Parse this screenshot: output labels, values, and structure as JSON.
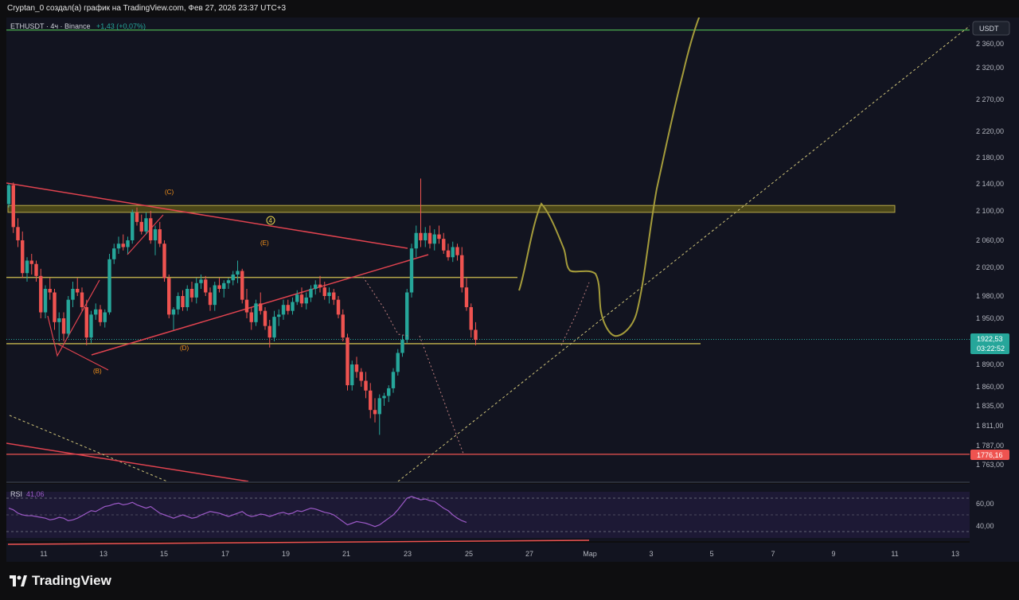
{
  "header": {
    "caption": "Cryptan_0 создал(а) график на TradingView.com, Фев 27, 2026 23:37 UTC+3"
  },
  "chart": {
    "symbol": "ETHUSDT · 4ч · Binance",
    "change": "+1,43 (+0,07%)",
    "currency_button": "USDT",
    "last_price": "1922,53",
    "countdown": "03:22:52",
    "level_label": "1776,16"
  },
  "rsi": {
    "label": "RSI",
    "value": "41,06",
    "ticks": [
      "60,00",
      "40,00"
    ]
  },
  "footer": {
    "brand": "TradingView"
  },
  "colors": {
    "background": "#121420",
    "up_candle": "#26a69a",
    "down_candle": "#ef5350",
    "zone": "#b7a94a",
    "trendline": "#e0434f",
    "hand_drawn": "#a59c3b",
    "rsi_line": "#9b59c6",
    "top_line": "#4caf50"
  },
  "chart_data": {
    "type": "candlestick",
    "symbol": "ETHUSDT",
    "timeframe": "4ч",
    "exchange": "Binance",
    "last_price": 1922.53,
    "y_ticks": [
      2360,
      2320,
      2270,
      2220,
      2180,
      2140,
      2100,
      2060,
      2020,
      1980,
      1950,
      1890,
      1860,
      1835,
      1811,
      1787,
      1763
    ],
    "y_tick_labels": [
      "2 360,00",
      "2 320,00",
      "2 270,00",
      "2 220,00",
      "2 180,00",
      "2 140,00",
      "2 100,00",
      "2 060,00",
      "2 020,00",
      "1 980,00",
      "1 950,00",
      "1 890,00",
      "1 860,00",
      "1 835,00",
      "1 811,00",
      "1 787,00",
      "1 763,00"
    ],
    "x_ticks": [
      "11",
      "13",
      "15",
      "17",
      "19",
      "21",
      "23",
      "25",
      "27",
      "Мар",
      "3",
      "5",
      "7",
      "9",
      "11",
      "13"
    ],
    "resistance_zone": [
      2098,
      2108
    ],
    "mid_level": 2006,
    "support_level": 1917,
    "low_level": 1776.16,
    "top_line": 2383,
    "wave_labels": [
      "(C)",
      "(E)",
      "(D)",
      "(B)",
      "4"
    ],
    "candles": [
      [
        2110,
        2140,
        2105,
        2138
      ],
      [
        2138,
        2142,
        2070,
        2078
      ],
      [
        2078,
        2090,
        2050,
        2060
      ],
      [
        2060,
        2072,
        2005,
        2012
      ],
      [
        2012,
        2035,
        2000,
        2030
      ],
      [
        2030,
        2040,
        2010,
        2025
      ],
      [
        2025,
        2030,
        2000,
        2008
      ],
      [
        2008,
        2018,
        1950,
        1958
      ],
      [
        1958,
        1995,
        1950,
        1990
      ],
      [
        1990,
        2005,
        1975,
        1985
      ],
      [
        1985,
        1990,
        1935,
        1945
      ],
      [
        1945,
        1958,
        1920,
        1950
      ],
      [
        1950,
        1958,
        1920,
        1930
      ],
      [
        1930,
        1980,
        1925,
        1975
      ],
      [
        1975,
        2000,
        1965,
        1990
      ],
      [
        1990,
        2005,
        1980,
        1985
      ],
      [
        1985,
        1992,
        1960,
        1965
      ],
      [
        1965,
        1975,
        1915,
        1925
      ],
      [
        1925,
        1960,
        1918,
        1955
      ],
      [
        1955,
        1970,
        1948,
        1962
      ],
      [
        1962,
        1968,
        1940,
        1945
      ],
      [
        1945,
        1962,
        1938,
        1958
      ],
      [
        1958,
        2040,
        1955,
        2032
      ],
      [
        2032,
        2055,
        2025,
        2048
      ],
      [
        2048,
        2065,
        2040,
        2055
      ],
      [
        2055,
        2068,
        2045,
        2050
      ],
      [
        2050,
        2065,
        2040,
        2060
      ],
      [
        2060,
        2102,
        2055,
        2098
      ],
      [
        2098,
        2105,
        2080,
        2085
      ],
      [
        2085,
        2095,
        2068,
        2072
      ],
      [
        2072,
        2098,
        2068,
        2090
      ],
      [
        2090,
        2100,
        2055,
        2060
      ],
      [
        2060,
        2080,
        2038,
        2075
      ],
      [
        2075,
        2085,
        2050,
        2055
      ],
      [
        2055,
        2060,
        2000,
        2005
      ],
      [
        2005,
        2010,
        1950,
        1955
      ],
      [
        1955,
        1965,
        1935,
        1962
      ],
      [
        1962,
        1985,
        1955,
        1980
      ],
      [
        1980,
        1988,
        1960,
        1965
      ],
      [
        1965,
        1995,
        1960,
        1990
      ],
      [
        1990,
        2000,
        1972,
        1978
      ],
      [
        1978,
        2005,
        1970,
        1998
      ],
      [
        1998,
        2010,
        1990,
        2003
      ],
      [
        2003,
        2008,
        1980,
        1985
      ],
      [
        1985,
        1992,
        1960,
        1968
      ],
      [
        1968,
        2000,
        1960,
        1995
      ],
      [
        1995,
        2005,
        1985,
        1990
      ],
      [
        1990,
        2002,
        1978,
        1998
      ],
      [
        1998,
        2005,
        1990,
        2002
      ],
      [
        2002,
        2015,
        1995,
        2010
      ],
      [
        2010,
        2030,
        1998,
        2015
      ],
      [
        2015,
        2018,
        1970,
        1975
      ],
      [
        1975,
        1990,
        1950,
        1958
      ],
      [
        1958,
        1965,
        1935,
        1945
      ],
      [
        1945,
        1975,
        1940,
        1970
      ],
      [
        1970,
        1985,
        1955,
        1960
      ],
      [
        1960,
        1965,
        1935,
        1940
      ],
      [
        1940,
        1948,
        1912,
        1925
      ],
      [
        1925,
        1960,
        1920,
        1952
      ],
      [
        1952,
        1962,
        1940,
        1955
      ],
      [
        1955,
        1975,
        1948,
        1968
      ],
      [
        1968,
        1975,
        1955,
        1960
      ],
      [
        1960,
        1978,
        1955,
        1972
      ],
      [
        1972,
        1988,
        1968,
        1982
      ],
      [
        1982,
        1992,
        1965,
        1970
      ],
      [
        1970,
        1985,
        1962,
        1978
      ],
      [
        1978,
        1995,
        1972,
        1990
      ],
      [
        1990,
        2002,
        1982,
        1996
      ],
      [
        1996,
        2008,
        1985,
        1992
      ],
      [
        1992,
        2000,
        1975,
        1980
      ],
      [
        1980,
        1992,
        1970,
        1985
      ],
      [
        1985,
        1990,
        1968,
        1975
      ],
      [
        1975,
        1980,
        1950,
        1955
      ],
      [
        1955,
        1962,
        1920,
        1925
      ],
      [
        1925,
        1930,
        1855,
        1862
      ],
      [
        1862,
        1895,
        1855,
        1890
      ],
      [
        1890,
        1900,
        1872,
        1880
      ],
      [
        1880,
        1885,
        1860,
        1868
      ],
      [
        1868,
        1880,
        1845,
        1855
      ],
      [
        1855,
        1865,
        1820,
        1830
      ],
      [
        1830,
        1845,
        1815,
        1825
      ],
      [
        1825,
        1850,
        1800,
        1845
      ],
      [
        1845,
        1852,
        1835,
        1848
      ],
      [
        1848,
        1862,
        1840,
        1858
      ],
      [
        1858,
        1885,
        1852,
        1880
      ],
      [
        1880,
        1910,
        1875,
        1905
      ],
      [
        1905,
        1928,
        1900,
        1922
      ],
      [
        1922,
        1990,
        1918,
        1985
      ],
      [
        1985,
        2055,
        1978,
        2048
      ],
      [
        2048,
        2080,
        2035,
        2070
      ],
      [
        2070,
        2148,
        2050,
        2060
      ],
      [
        2060,
        2078,
        2050,
        2070
      ],
      [
        2070,
        2080,
        2048,
        2055
      ],
      [
        2055,
        2075,
        2045,
        2068
      ],
      [
        2068,
        2080,
        2055,
        2062
      ],
      [
        2062,
        2070,
        2040,
        2045
      ],
      [
        2045,
        2055,
        2030,
        2035
      ],
      [
        2035,
        2058,
        2028,
        2050
      ],
      [
        2050,
        2055,
        2030,
        2038
      ],
      [
        2038,
        2050,
        1985,
        1992
      ],
      [
        1992,
        2005,
        1960,
        1965
      ],
      [
        1965,
        1970,
        1925,
        1935
      ],
      [
        1935,
        1945,
        1915,
        1922
      ]
    ],
    "rsi_values": [
      58,
      56,
      52,
      50,
      49,
      49,
      48,
      47,
      46,
      44,
      45,
      47,
      46,
      43,
      44,
      46,
      49,
      52,
      55,
      54,
      57,
      60,
      61,
      63,
      64,
      62,
      63,
      65,
      62,
      60,
      58,
      60,
      56,
      52,
      50,
      48,
      46,
      48,
      50,
      48,
      46,
      47,
      50,
      52,
      54,
      53,
      52,
      50,
      48,
      50,
      52,
      54,
      50,
      48,
      49,
      51,
      50,
      48,
      50,
      52,
      53,
      51,
      52,
      55,
      54,
      56,
      58,
      57,
      55,
      53,
      52,
      50,
      46,
      42,
      38,
      40,
      42,
      41,
      40,
      38,
      36,
      38,
      42,
      46,
      50,
      56,
      63,
      70,
      72,
      70,
      68,
      69,
      67,
      66,
      62,
      58,
      55,
      50,
      46,
      43,
      41
    ]
  }
}
